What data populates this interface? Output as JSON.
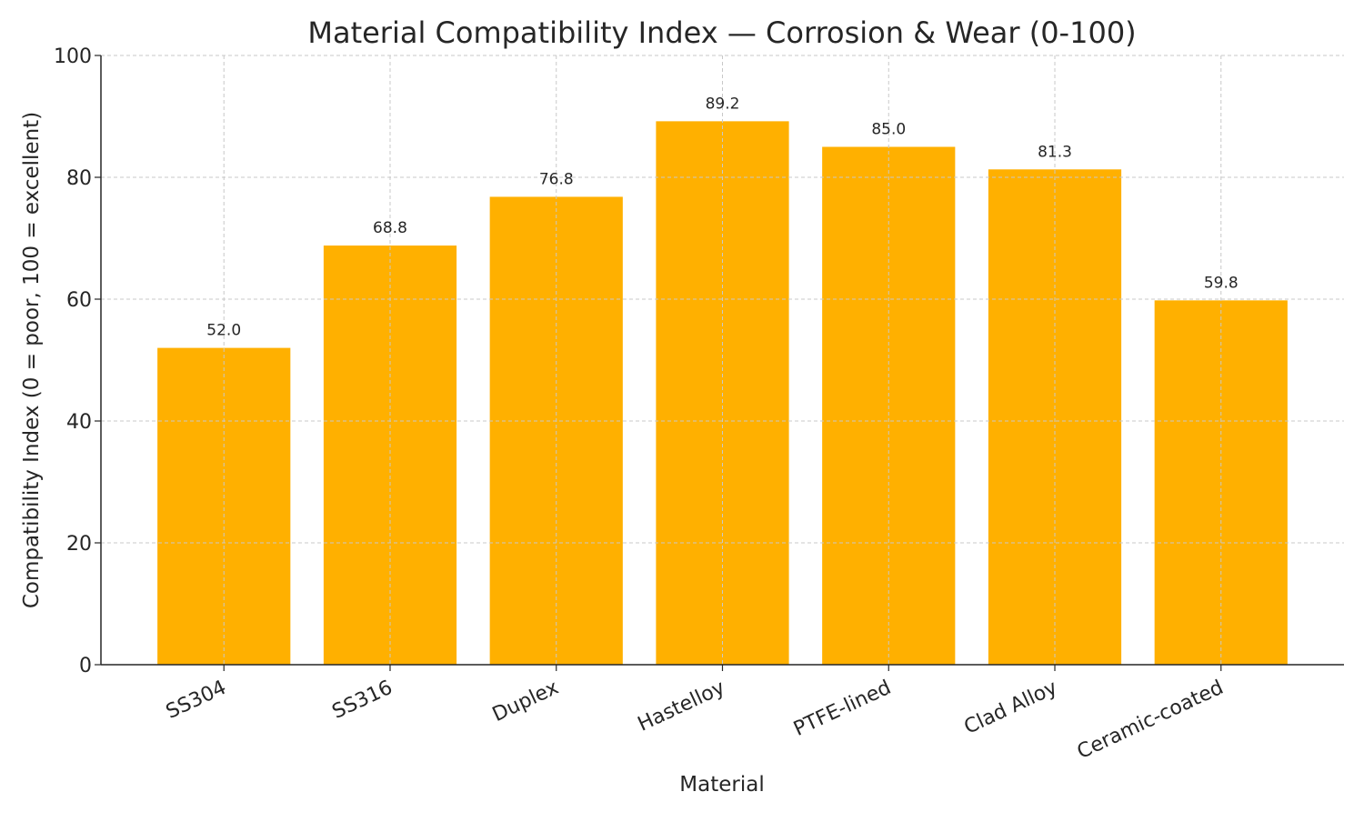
{
  "chart_data": {
    "type": "bar",
    "title": "Material Compatibility Index — Corrosion & Wear (0-100)",
    "xlabel": "Material",
    "ylabel": "Compatibility Index (0 = poor, 100 = excellent)",
    "categories": [
      "SS304",
      "SS316",
      "Duplex",
      "Hastelloy",
      "PTFE-lined",
      "Clad Alloy",
      "Ceramic-coated"
    ],
    "values": [
      52.0,
      68.8,
      76.8,
      89.2,
      85.0,
      81.3,
      59.8
    ],
    "data_labels": [
      "52.0",
      "68.8",
      "76.8",
      "89.2",
      "85.0",
      "81.3",
      "59.8"
    ],
    "ylim": [
      0,
      100
    ],
    "yticks": [
      0,
      20,
      40,
      60,
      80,
      100
    ],
    "grid": true,
    "bar_color": "#FFB000"
  }
}
